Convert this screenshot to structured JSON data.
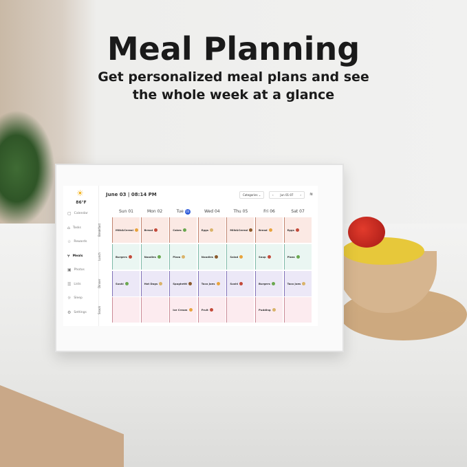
{
  "headline": "Meal Planning",
  "subline1": "Get personalized meal plans and see",
  "subline2": "the whole week at a glance",
  "device": {
    "weather": {
      "icon": "sun-icon",
      "temp": "86°F"
    },
    "nav": [
      {
        "label": "Calendar",
        "icon": "calendar-icon"
      },
      {
        "label": "Tasks",
        "icon": "tasks-icon"
      },
      {
        "label": "Rewards",
        "icon": "rewards-icon"
      },
      {
        "label": "Meals",
        "icon": "meals-icon",
        "active": true
      },
      {
        "label": "Photos",
        "icon": "photos-icon"
      },
      {
        "label": "Lists",
        "icon": "lists-icon"
      },
      {
        "label": "Sleep",
        "icon": "sleep-icon"
      },
      {
        "label": "Settings",
        "icon": "settings-icon"
      }
    ],
    "datetime": "June 03 | 08:14 PM",
    "categories_label": "Categories",
    "week_range": "Jun 01-07",
    "days": [
      {
        "name": "Sun",
        "num": "01"
      },
      {
        "name": "Mon",
        "num": "02"
      },
      {
        "name": "Tue",
        "num": "03",
        "today": true
      },
      {
        "name": "Wed",
        "num": "04"
      },
      {
        "name": "Thu",
        "num": "05"
      },
      {
        "name": "Fri",
        "num": "06"
      },
      {
        "name": "Sat",
        "num": "07"
      }
    ],
    "rows": [
      {
        "label": "Breakfast",
        "color": "#fbe9e4",
        "line": "#c0836e",
        "meals": [
          "Milk&Cereal",
          "Bread",
          "Cakes",
          "Eggs",
          "Milk&Cereal",
          "Bread",
          "Eggs"
        ]
      },
      {
        "label": "Lunch",
        "color": "#eaf6f2",
        "line": "#7cb8a6",
        "meals": [
          "Burgers",
          "Noodles",
          "Pizza",
          "Noodles",
          "Salad",
          "Soup",
          "Pizza"
        ]
      },
      {
        "label": "Dinner",
        "color": "#ece8f7",
        "line": "#7f6fb6",
        "meals": [
          "Sushi",
          "Hot Dogs",
          "Spaghetti",
          "Taco Joes",
          "Sushi",
          "Burgers",
          "Taco Joes"
        ]
      },
      {
        "label": "Snack",
        "color": "#fcebef",
        "line": "#c98a96",
        "meals": [
          "",
          "",
          "Ice Cream",
          "Fruit",
          "",
          "Pudding",
          ""
        ]
      }
    ]
  }
}
